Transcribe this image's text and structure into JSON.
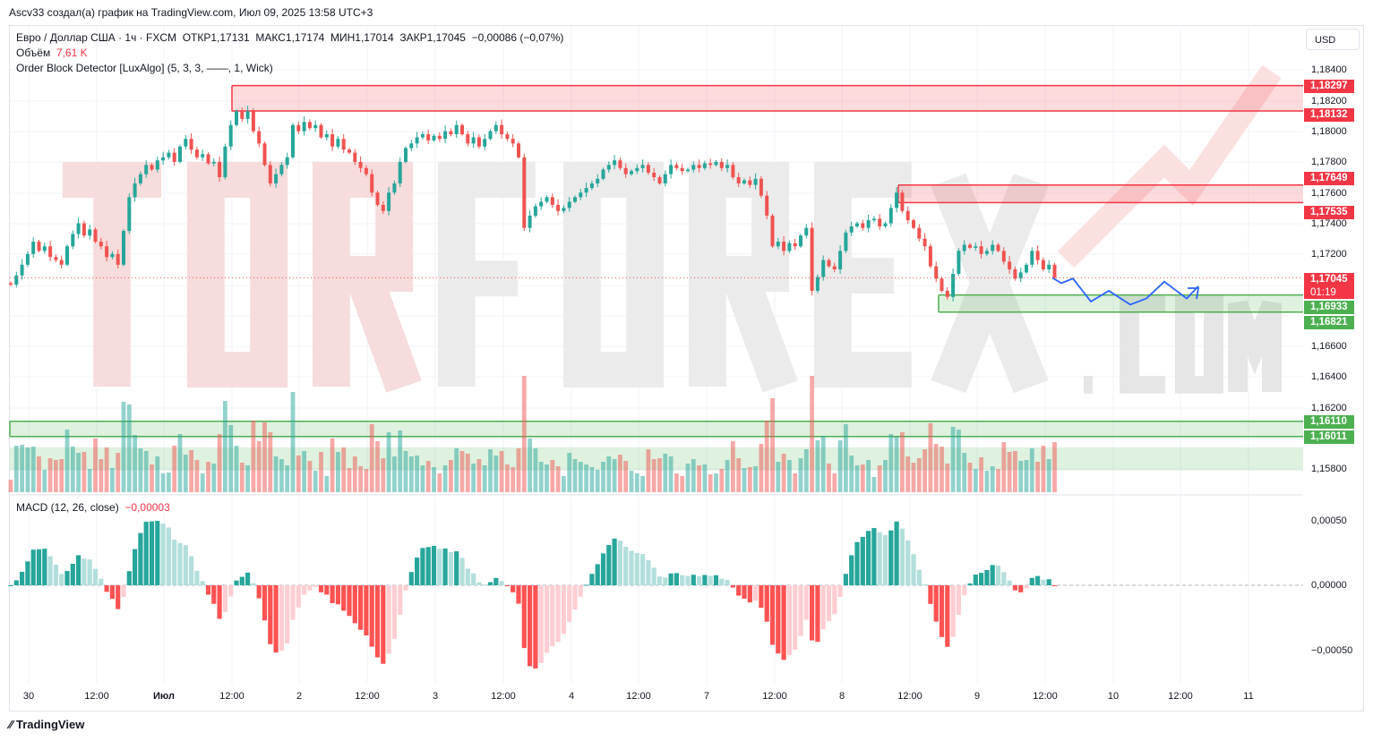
{
  "credit": "Ascv33 создал(а) график на TradingView.com, Июл 09, 2025 13:58 UTC+3",
  "legend": {
    "symbol": "Евро / Доллар США · 1ч · FXCM",
    "open": "ОТКР1,17131",
    "high": "МАКС1,17174",
    "low": "МИН1,17014",
    "close": "ЗАКР1,17045",
    "change": "−0,00086 (−0,07%)",
    "volume_label": "Объём",
    "volume_value": "7,61 K",
    "indicator": "Order Block Detector [LuxAlgo] (5, 3, 3, ——, 1, Wick)",
    "macd_label": "MACD (12, 26, close)",
    "macd_value": "−0,00003"
  },
  "currency": "USD",
  "price_ticks": [
    "1,18400",
    "1,18200",
    "1,18000",
    "1,17800",
    "1,17600",
    "1,17400",
    "1,17200",
    "1,16600",
    "1,16400",
    "1,16200",
    "1,15800"
  ],
  "macd_ticks": [
    "0,00050",
    "0,00000",
    "−0,00050"
  ],
  "time_labels": [
    "30",
    "12:00",
    "Июл",
    "12:00",
    "2",
    "12:00",
    "3",
    "12:00",
    "4",
    "12:00",
    "7",
    "12:00",
    "8",
    "12:00",
    "9",
    "12:00",
    "10",
    "12:00",
    "11"
  ],
  "price_labels": [
    {
      "text": "1,18297",
      "color": "#f23645"
    },
    {
      "text": "1,18132",
      "color": "#f23645"
    },
    {
      "text": "1,17649",
      "color": "#f23645"
    },
    {
      "text": "1,17535",
      "color": "#f23645"
    },
    {
      "text": "1,17045",
      "sub": "01:19",
      "color": "#f23645"
    },
    {
      "text": "1,16933",
      "color": "#4caf50"
    },
    {
      "text": "1,16821",
      "color": "#4caf50"
    },
    {
      "text": "1,16110",
      "color": "#4caf50"
    },
    {
      "text": "1,16011",
      "color": "#4caf50"
    }
  ],
  "watermark": "TORFOREX",
  "watermark_suffix": ".com",
  "logo": "TradingView",
  "colors": {
    "up": "#26a69a",
    "down": "#ef5350",
    "bear_ob": "#f23645",
    "bull_ob": "#4caf50",
    "forecast": "#2962ff"
  },
  "chart_data": {
    "type": "candlestick",
    "timeframe": "1h",
    "closes": [
      1.17,
      1.1706,
      1.1713,
      1.172,
      1.1728,
      1.1722,
      1.1725,
      1.1718,
      1.1716,
      1.1713,
      1.1725,
      1.1733,
      1.174,
      1.1732,
      1.1736,
      1.1728,
      1.1725,
      1.1718,
      1.172,
      1.1713,
      1.1735,
      1.1757,
      1.1766,
      1.1772,
      1.1778,
      1.1775,
      1.1781,
      1.1783,
      1.1786,
      1.178,
      1.179,
      1.1795,
      1.1788,
      1.1783,
      1.1785,
      1.1779,
      1.178,
      1.177,
      1.179,
      1.1804,
      1.1813,
      1.1808,
      1.1813,
      1.18,
      1.1792,
      1.1778,
      1.1766,
      1.1772,
      1.1778,
      1.1783,
      1.1804,
      1.18,
      1.1806,
      1.1802,
      1.1804,
      1.1796,
      1.1798,
      1.179,
      1.1795,
      1.1788,
      1.1786,
      1.178,
      1.1776,
      1.1772,
      1.176,
      1.1752,
      1.1748,
      1.176,
      1.1766,
      1.178,
      1.1789,
      1.1792,
      1.1796,
      1.1798,
      1.1794,
      1.1797,
      1.1795,
      1.18,
      1.1798,
      1.1804,
      1.1798,
      1.1792,
      1.1796,
      1.179,
      1.1795,
      1.18,
      1.1804,
      1.1798,
      1.1795,
      1.1792,
      1.1783,
      1.1737,
      1.1745,
      1.1751,
      1.1754,
      1.1757,
      1.1752,
      1.1748,
      1.175,
      1.1754,
      1.1757,
      1.176,
      1.1763,
      1.1766,
      1.1769,
      1.1775,
      1.1778,
      1.1781,
      1.1776,
      1.1772,
      1.1774,
      1.1776,
      1.1778,
      1.1773,
      1.177,
      1.1766,
      1.1772,
      1.1778,
      1.1776,
      1.1774,
      1.1775,
      1.1778,
      1.1776,
      1.1779,
      1.1778,
      1.178,
      1.1776,
      1.1778,
      1.177,
      1.1766,
      1.1768,
      1.1765,
      1.1769,
      1.1758,
      1.1745,
      1.1725,
      1.1728,
      1.1722,
      1.1727,
      1.1725,
      1.1732,
      1.1737,
      1.1696,
      1.1705,
      1.1716,
      1.1712,
      1.171,
      1.1722,
      1.1734,
      1.1738,
      1.174,
      1.1737,
      1.1742,
      1.1743,
      1.1738,
      1.174,
      1.175,
      1.176,
      1.1748,
      1.1742,
      1.1737,
      1.173,
      1.1725,
      1.1712,
      1.1704,
      1.1696,
      1.1692,
      1.1707,
      1.1722,
      1.1726,
      1.1724,
      1.1725,
      1.172,
      1.1722,
      1.1726,
      1.1722,
      1.1715,
      1.171,
      1.1704,
      1.1708,
      1.1713,
      1.1722,
      1.1716,
      1.171,
      1.1713,
      1.17045
    ],
    "last_price": 1.17045,
    "order_blocks": [
      {
        "type": "bearish",
        "top": 1.18297,
        "bottom": 1.18132
      },
      {
        "type": "bearish",
        "top": 1.17649,
        "bottom": 1.17535
      },
      {
        "type": "bullish",
        "top": 1.16933,
        "bottom": 1.16821
      },
      {
        "type": "bullish",
        "top": 1.1611,
        "bottom": 1.16011
      },
      {
        "type": "bullish",
        "top": 1.1594,
        "bottom": 1.1579
      }
    ],
    "forecast_path": [
      1.17045,
      1.1701,
      1.1704,
      1.1689,
      1.1696,
      1.1687,
      1.1691,
      1.1702,
      1.1691,
      1.1699
    ],
    "ylim": [
      1.157,
      1.185
    ],
    "grid": true
  }
}
